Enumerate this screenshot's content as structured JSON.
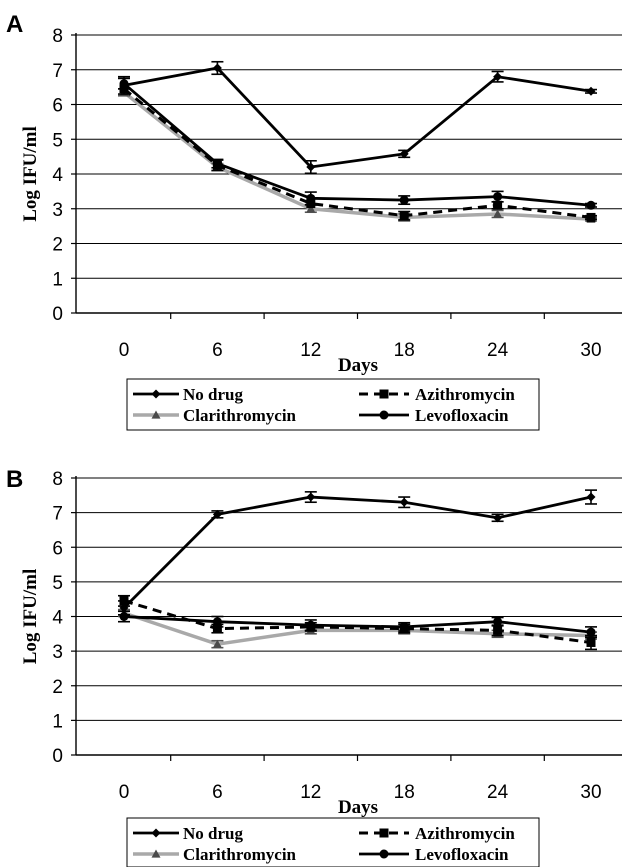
{
  "chart_data": [
    {
      "type": "line",
      "panel_label": "A",
      "xlabel": "Days",
      "ylabel": "Log IFU/ml",
      "x": [
        0,
        6,
        12,
        18,
        24,
        30
      ],
      "ylim": [
        0,
        8
      ],
      "yticks": [
        0,
        1,
        2,
        3,
        4,
        5,
        6,
        7,
        8
      ],
      "grid": true,
      "legend_position": "bottom",
      "series": [
        {
          "name": "No drug",
          "values": [
            6.55,
            7.05,
            4.2,
            4.58,
            6.8,
            6.38
          ],
          "errors": [
            0.25,
            0.18,
            0.18,
            0.1,
            0.15,
            0.05
          ],
          "color": "#000000",
          "style": "solid-thick",
          "marker": "diamond"
        },
        {
          "name": "Azithromycin",
          "values": [
            6.45,
            4.25,
            3.15,
            2.8,
            3.1,
            2.75
          ],
          "errors": [
            0.0,
            0.15,
            0.0,
            0.12,
            0.1,
            0.05
          ],
          "color": "#000000",
          "style": "dashed",
          "marker": "square"
        },
        {
          "name": "Clarithromycin",
          "values": [
            6.35,
            4.2,
            3.0,
            2.75,
            2.85,
            2.7
          ],
          "errors": [
            0.1,
            0.1,
            0.1,
            0.1,
            0.1,
            0.05
          ],
          "color": "#a9a9a9",
          "style": "solid-gray",
          "marker": "triangle"
        },
        {
          "name": "Levofloxacin",
          "values": [
            6.6,
            4.3,
            3.3,
            3.25,
            3.35,
            3.1
          ],
          "errors": [
            0.15,
            0.12,
            0.18,
            0.12,
            0.15,
            0.05
          ],
          "color": "#000000",
          "style": "solid-thick",
          "marker": "circle"
        }
      ]
    },
    {
      "type": "line",
      "panel_label": "B",
      "xlabel": "Days",
      "ylabel": "Log IFU/ml",
      "x": [
        0,
        6,
        12,
        18,
        24,
        30
      ],
      "ylim": [
        0,
        8
      ],
      "yticks": [
        0,
        1,
        2,
        3,
        4,
        5,
        6,
        7,
        8
      ],
      "grid": true,
      "legend_position": "bottom",
      "series": [
        {
          "name": "No drug",
          "values": [
            4.25,
            6.95,
            7.45,
            7.3,
            6.85,
            7.45
          ],
          "errors": [
            0.2,
            0.1,
            0.15,
            0.15,
            0.1,
            0.2
          ],
          "color": "#000000",
          "style": "solid-thick",
          "marker": "diamond"
        },
        {
          "name": "Azithromycin",
          "values": [
            4.45,
            3.65,
            3.7,
            3.65,
            3.6,
            3.25
          ],
          "errors": [
            0.15,
            0.12,
            0.12,
            0.12,
            0.15,
            0.2
          ],
          "color": "#000000",
          "style": "dashed",
          "marker": "square"
        },
        {
          "name": "Clarithromycin",
          "values": [
            4.1,
            3.2,
            3.6,
            3.6,
            3.5,
            3.45
          ],
          "errors": [
            0.1,
            0.1,
            0.1,
            0.1,
            0.1,
            0.1
          ],
          "color": "#a9a9a9",
          "style": "solid-gray",
          "marker": "triangle"
        },
        {
          "name": "Levofloxacin",
          "values": [
            4.0,
            3.85,
            3.75,
            3.7,
            3.85,
            3.55
          ],
          "errors": [
            0.15,
            0.15,
            0.15,
            0.12,
            0.12,
            0.15
          ],
          "color": "#000000",
          "style": "solid-thick",
          "marker": "circle"
        }
      ]
    }
  ]
}
